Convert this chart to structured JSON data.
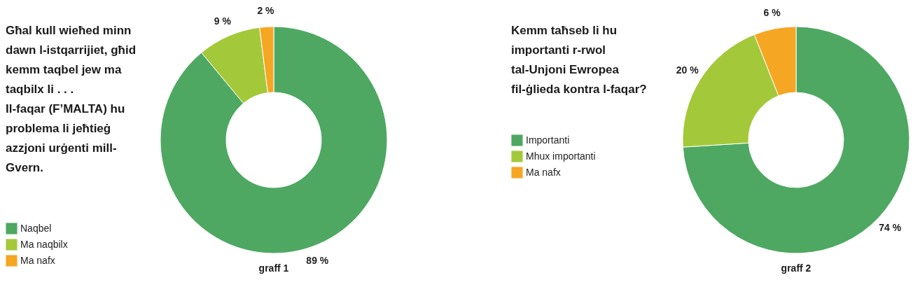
{
  "chart_data": [
    {
      "type": "donut",
      "title": "Għal kull wieħed minn\ndawn l-istqarrijiet, għid\nkemm taqbel jew ma\ntaqbilx li . . .\nIl-faqar (F’MALTA) hu\nproblema li jeħtieġ\nazzjoni urġenti mill-\nGvern.",
      "categories": [
        "Naqbel",
        "Ma naqbilx",
        "Ma nafx"
      ],
      "values": [
        89,
        9,
        2
      ],
      "colors": [
        "#4ea862",
        "#a3c93a",
        "#f5a623"
      ],
      "value_labels": [
        "89 %",
        "9 %",
        "2 %"
      ],
      "legend": "bottom left",
      "annotations": [
        "graff 1"
      ]
    },
    {
      "type": "donut",
      "title": "Kemm taħseb li hu\nimportanti r-rwol\ntal-Unjoni Ewropea\nfil-ġlieda kontra l-faqar?",
      "categories": [
        "Importanti",
        "Mhux importanti",
        "Ma nafx"
      ],
      "values": [
        74,
        20,
        6
      ],
      "colors": [
        "#4ea862",
        "#a3c93a",
        "#f5a623"
      ],
      "value_labels": [
        "74 %",
        "20 %",
        "6 %"
      ],
      "legend": "left",
      "annotations": [
        "graff 2"
      ]
    }
  ]
}
